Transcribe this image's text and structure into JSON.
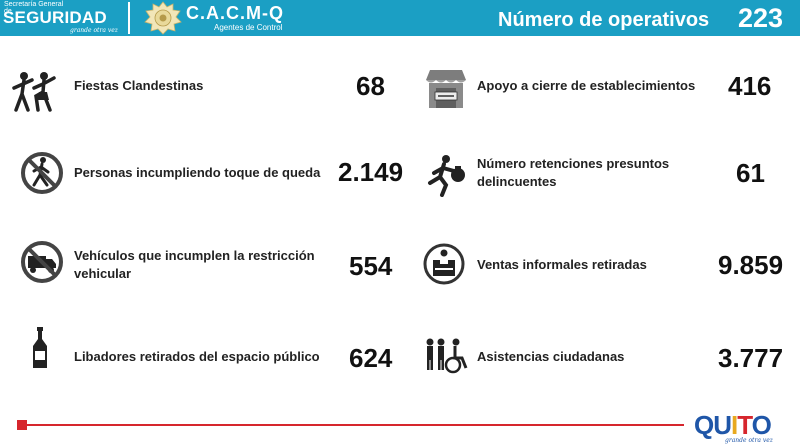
{
  "header": {
    "brand_sub": "Secretaría General de",
    "brand_main": "SEGURIDAD",
    "brand_sign": "grande otra vez",
    "agency_name": "C.A.C.M-Q",
    "agency_tag": "Agentes de Control",
    "title": "Número de operativos",
    "total": "223"
  },
  "items": [
    {
      "icon": "party-dancers-icon",
      "label": "Fiestas Clandestinas",
      "value": "68"
    },
    {
      "icon": "closed-store-icon",
      "label": "Apoyo a cierre de establecimientos",
      "value": "416"
    },
    {
      "icon": "no-pedestrian-icon",
      "label": "Personas incumpliendo toque de queda",
      "value": "2.149"
    },
    {
      "icon": "running-thief-icon",
      "label_line1": "Número retenciones presuntos",
      "label_line2": "delincuentes",
      "value": "61"
    },
    {
      "icon": "no-truck-icon",
      "label_line1": "Vehículos que incumplen la restricción",
      "label_line2": "vehicular",
      "value": "554"
    },
    {
      "icon": "street-vendor-icon",
      "label": "Ventas informales retiradas",
      "value": "9.859"
    },
    {
      "icon": "bottle-icon",
      "label": "Libadores retirados del espacio público",
      "value": "624"
    },
    {
      "icon": "assistance-people-icon",
      "label": "Asistencias ciudadanas",
      "value": "3.777"
    }
  ],
  "footer": {
    "logo_letters": [
      "QU",
      "I",
      "T",
      "O"
    ],
    "logo_sign": "grande otra vez"
  },
  "colors": {
    "header_bg": "#1b9fc4",
    "accent_red": "#d6262d",
    "logo_blue": "#1f56a8",
    "logo_yellow": "#e8a91f"
  }
}
